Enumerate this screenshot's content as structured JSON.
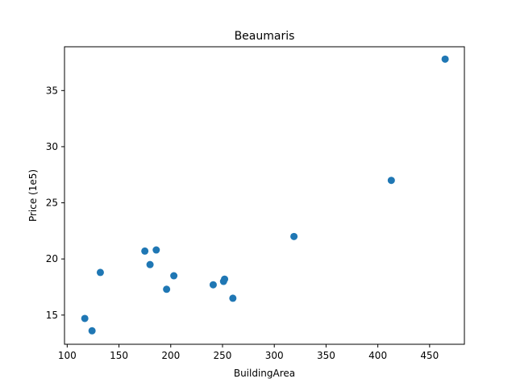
{
  "chart_data": {
    "type": "scatter",
    "title": "Beaumaris",
    "xlabel": "BuildingArea",
    "ylabel": "Price (1e5)",
    "xlim": [
      97.4,
      483.6
    ],
    "ylim": [
      12.4,
      38.9
    ],
    "xticks": [
      100,
      150,
      200,
      250,
      300,
      350,
      400,
      450
    ],
    "yticks": [
      15,
      20,
      25,
      30,
      35
    ],
    "grid": false,
    "marker_color": "#1f77b4",
    "series": [
      {
        "points": [
          {
            "x": 117,
            "y": 14.7
          },
          {
            "x": 124,
            "y": 13.6
          },
          {
            "x": 132,
            "y": 18.8
          },
          {
            "x": 175,
            "y": 20.7
          },
          {
            "x": 180,
            "y": 19.5
          },
          {
            "x": 186,
            "y": 20.8
          },
          {
            "x": 196,
            "y": 17.3
          },
          {
            "x": 203,
            "y": 18.5
          },
          {
            "x": 241,
            "y": 17.7
          },
          {
            "x": 251,
            "y": 18.0
          },
          {
            "x": 252,
            "y": 18.2
          },
          {
            "x": 260,
            "y": 16.5
          },
          {
            "x": 319,
            "y": 22.0
          },
          {
            "x": 413,
            "y": 27.0
          },
          {
            "x": 465,
            "y": 37.8
          }
        ]
      }
    ]
  }
}
